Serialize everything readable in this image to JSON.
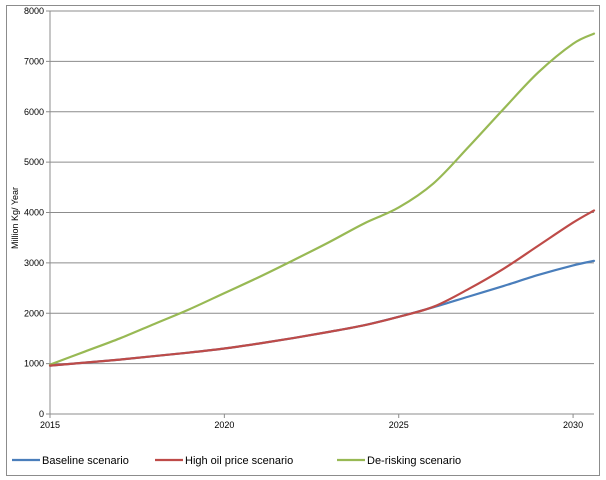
{
  "chart_data": {
    "type": "line",
    "title": "",
    "xlabel": "",
    "ylabel": "Million Kg/ Year",
    "xlim": [
      2015,
      2030.6
    ],
    "ylim": [
      0,
      8000
    ],
    "x_ticks": [
      "2015",
      "2020",
      "2025",
      "2030"
    ],
    "y_ticks": [
      "0",
      "1000",
      "2000",
      "3000",
      "4000",
      "5000",
      "6000",
      "7000",
      "8000"
    ],
    "grid": "horizontal",
    "legend_position": "bottom",
    "x": [
      2015,
      2016,
      2017,
      2018,
      2019,
      2020,
      2021,
      2022,
      2023,
      2024,
      2025,
      2026,
      2027,
      2028,
      2029,
      2030,
      2030.6
    ],
    "series": [
      {
        "name": "Baseline scenario",
        "color": "#4a7ebb",
        "values": [
          960,
          1020,
          1080,
          1150,
          1220,
          1300,
          1400,
          1510,
          1630,
          1760,
          1930,
          2120,
          2330,
          2540,
          2760,
          2950,
          3040
        ]
      },
      {
        "name": "High oil price scenario",
        "color": "#be4b48",
        "values": [
          960,
          1020,
          1080,
          1150,
          1220,
          1300,
          1400,
          1510,
          1630,
          1760,
          1930,
          2130,
          2480,
          2880,
          3340,
          3800,
          4040
        ]
      },
      {
        "name": "De-risking scenario",
        "color": "#98b954",
        "values": [
          980,
          1240,
          1500,
          1790,
          2080,
          2400,
          2720,
          3060,
          3410,
          3780,
          4100,
          4580,
          5300,
          6050,
          6780,
          7350,
          7550
        ]
      }
    ]
  }
}
